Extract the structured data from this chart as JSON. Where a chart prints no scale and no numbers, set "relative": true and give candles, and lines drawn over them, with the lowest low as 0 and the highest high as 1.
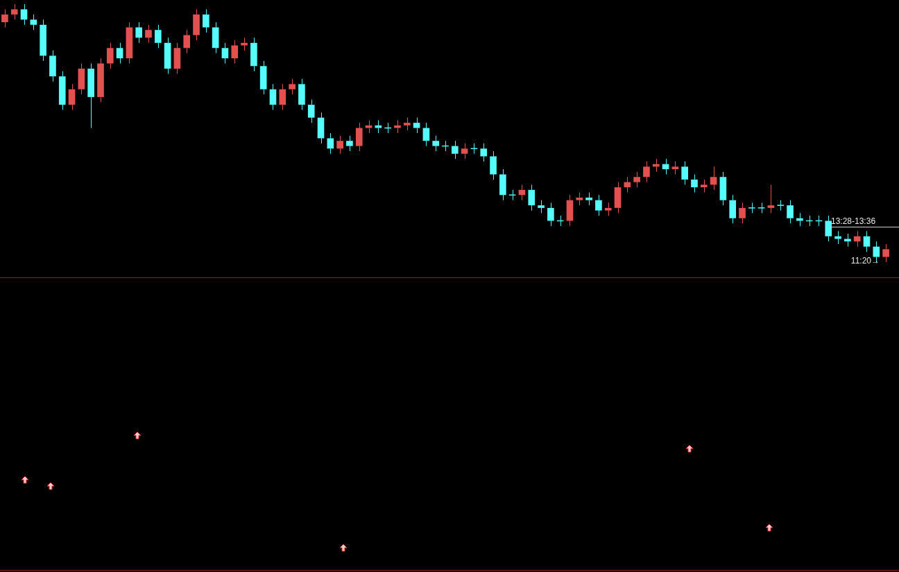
{
  "chart_data": {
    "type": "candlestick",
    "relative": true,
    "categories": [
      null,
      null,
      null,
      null,
      null,
      null,
      null,
      null,
      null,
      null,
      null,
      null,
      null,
      null,
      null,
      null,
      null,
      null,
      null,
      null,
      null,
      null,
      null,
      null,
      null,
      null,
      null,
      null,
      null,
      null,
      null,
      null,
      null,
      null,
      null,
      null,
      null,
      null,
      null,
      null,
      null,
      null,
      null,
      null,
      null,
      null,
      null,
      null,
      null,
      null,
      null,
      null,
      null,
      null,
      null,
      null,
      null,
      null,
      null,
      null,
      null,
      null,
      null,
      null,
      null,
      null,
      null,
      null,
      null,
      null,
      null,
      null,
      null,
      null,
      null,
      null,
      null,
      null,
      null,
      null,
      null,
      null,
      null,
      null,
      null,
      null,
      null,
      null,
      null,
      null,
      null,
      null,
      null
    ],
    "ohlc": [
      [
        0.93,
        0.98,
        0.91,
        0.96
      ],
      [
        0.96,
        1.0,
        0.94,
        0.98
      ],
      [
        0.98,
        1.0,
        0.92,
        0.94
      ],
      [
        0.94,
        0.96,
        0.9,
        0.92
      ],
      [
        0.92,
        0.94,
        0.78,
        0.8
      ],
      [
        0.8,
        0.82,
        0.7,
        0.72
      ],
      [
        0.72,
        0.74,
        0.59,
        0.61
      ],
      [
        0.61,
        0.69,
        0.59,
        0.67
      ],
      [
        0.67,
        0.77,
        0.65,
        0.75
      ],
      [
        0.75,
        0.77,
        0.52,
        0.64
      ],
      [
        0.64,
        0.79,
        0.62,
        0.77
      ],
      [
        0.77,
        0.85,
        0.75,
        0.83
      ],
      [
        0.83,
        0.85,
        0.77,
        0.79
      ],
      [
        0.79,
        0.93,
        0.77,
        0.91
      ],
      [
        0.91,
        0.93,
        0.85,
        0.87
      ],
      [
        0.87,
        0.92,
        0.85,
        0.9
      ],
      [
        0.9,
        0.92,
        0.83,
        0.85
      ],
      [
        0.85,
        0.87,
        0.73,
        0.75
      ],
      [
        0.75,
        0.85,
        0.73,
        0.83
      ],
      [
        0.83,
        0.9,
        0.81,
        0.88
      ],
      [
        0.88,
        0.98,
        0.86,
        0.96
      ],
      [
        0.96,
        0.98,
        0.89,
        0.91
      ],
      [
        0.91,
        0.93,
        0.81,
        0.83
      ],
      [
        0.83,
        0.85,
        0.77,
        0.79
      ],
      [
        0.79,
        0.86,
        0.77,
        0.84
      ],
      [
        0.84,
        0.87,
        0.82,
        0.85
      ],
      [
        0.85,
        0.87,
        0.74,
        0.76
      ],
      [
        0.76,
        0.78,
        0.65,
        0.67
      ],
      [
        0.67,
        0.69,
        0.59,
        0.61
      ],
      [
        0.61,
        0.69,
        0.59,
        0.67
      ],
      [
        0.67,
        0.71,
        0.65,
        0.69
      ],
      [
        0.69,
        0.71,
        0.59,
        0.61
      ],
      [
        0.61,
        0.63,
        0.54,
        0.56
      ],
      [
        0.56,
        0.58,
        0.46,
        0.48
      ],
      [
        0.48,
        0.5,
        0.42,
        0.44
      ],
      [
        0.44,
        0.49,
        0.42,
        0.47
      ],
      [
        0.47,
        0.49,
        0.43,
        0.45
      ],
      [
        0.45,
        0.54,
        0.43,
        0.52
      ],
      [
        0.52,
        0.55,
        0.5,
        0.53
      ],
      [
        0.53,
        0.55,
        0.5,
        0.52
      ],
      [
        0.52,
        0.54,
        0.5,
        0.52
      ],
      [
        0.52,
        0.55,
        0.5,
        0.53
      ],
      [
        0.53,
        0.56,
        0.51,
        0.54
      ],
      [
        0.54,
        0.56,
        0.5,
        0.52
      ],
      [
        0.52,
        0.54,
        0.45,
        0.47
      ],
      [
        0.47,
        0.49,
        0.43,
        0.45
      ],
      [
        0.45,
        0.47,
        0.43,
        0.45
      ],
      [
        0.45,
        0.47,
        0.4,
        0.42
      ],
      [
        0.42,
        0.46,
        0.4,
        0.44
      ],
      [
        0.44,
        0.46,
        0.42,
        0.44
      ],
      [
        0.44,
        0.46,
        0.39,
        0.41
      ],
      [
        0.41,
        0.43,
        0.32,
        0.34
      ],
      [
        0.34,
        0.36,
        0.24,
        0.26
      ],
      [
        0.26,
        0.28,
        0.24,
        0.26
      ],
      [
        0.26,
        0.3,
        0.24,
        0.28
      ],
      [
        0.28,
        0.3,
        0.2,
        0.22
      ],
      [
        0.22,
        0.24,
        0.19,
        0.21
      ],
      [
        0.21,
        0.23,
        0.14,
        0.16
      ],
      [
        0.16,
        0.18,
        0.14,
        0.16
      ],
      [
        0.16,
        0.26,
        0.14,
        0.24
      ],
      [
        0.24,
        0.27,
        0.22,
        0.25
      ],
      [
        0.25,
        0.27,
        0.22,
        0.24
      ],
      [
        0.24,
        0.26,
        0.18,
        0.2
      ],
      [
        0.2,
        0.23,
        0.18,
        0.21
      ],
      [
        0.21,
        0.31,
        0.19,
        0.29
      ],
      [
        0.29,
        0.33,
        0.27,
        0.31
      ],
      [
        0.31,
        0.35,
        0.29,
        0.33
      ],
      [
        0.33,
        0.39,
        0.31,
        0.37
      ],
      [
        0.37,
        0.4,
        0.35,
        0.38
      ],
      [
        0.38,
        0.4,
        0.34,
        0.36
      ],
      [
        0.36,
        0.39,
        0.34,
        0.37
      ],
      [
        0.37,
        0.39,
        0.3,
        0.32
      ],
      [
        0.32,
        0.34,
        0.27,
        0.29
      ],
      [
        0.29,
        0.32,
        0.27,
        0.3
      ],
      [
        0.3,
        0.37,
        0.28,
        0.33
      ],
      [
        0.33,
        0.35,
        0.22,
        0.24
      ],
      [
        0.24,
        0.26,
        0.15,
        0.17
      ],
      [
        0.17,
        0.23,
        0.15,
        0.21
      ],
      [
        0.21,
        0.23,
        0.19,
        0.21
      ],
      [
        0.21,
        0.23,
        0.19,
        0.21
      ],
      [
        0.21,
        0.3,
        0.19,
        0.22
      ],
      [
        0.22,
        0.24,
        0.2,
        0.22
      ],
      [
        0.22,
        0.24,
        0.15,
        0.17
      ],
      [
        0.17,
        0.19,
        0.14,
        0.16
      ],
      [
        0.16,
        0.18,
        0.14,
        0.16
      ],
      [
        0.16,
        0.18,
        0.14,
        0.16
      ],
      [
        0.16,
        0.18,
        0.08,
        0.1
      ],
      [
        0.1,
        0.12,
        0.07,
        0.09
      ],
      [
        0.09,
        0.11,
        0.06,
        0.08
      ],
      [
        0.08,
        0.12,
        0.06,
        0.1
      ],
      [
        0.1,
        0.12,
        0.04,
        0.06
      ],
      [
        0.06,
        0.08,
        0.0,
        0.02
      ],
      [
        0.02,
        0.07,
        0.0,
        0.05
      ]
    ],
    "colors": [
      "#e25050",
      "#e25050",
      "#54fcfc",
      "#54fcfc",
      "#54fcfc",
      "#54fcfc",
      "#54fcfc",
      "#e25050",
      "#e25050",
      "#54fcfc",
      "#e25050",
      "#e25050",
      "#54fcfc",
      "#e25050",
      "#54fcfc",
      "#e25050",
      "#54fcfc",
      "#54fcfc",
      "#e25050",
      "#e25050",
      "#e25050",
      "#54fcfc",
      "#54fcfc",
      "#54fcfc",
      "#e25050",
      "#e25050",
      "#54fcfc",
      "#54fcfc",
      "#54fcfc",
      "#e25050",
      "#e25050",
      "#54fcfc",
      "#54fcfc",
      "#54fcfc",
      "#54fcfc",
      "#e25050",
      "#54fcfc",
      "#e25050",
      "#e25050",
      "#54fcfc",
      "#54fcfc",
      "#e25050",
      "#e25050",
      "#54fcfc",
      "#54fcfc",
      "#54fcfc",
      "#54fcfc",
      "#54fcfc",
      "#e25050",
      "#54fcfc",
      "#54fcfc",
      "#54fcfc",
      "#54fcfc",
      "#54fcfc",
      "#e25050",
      "#54fcfc",
      "#54fcfc",
      "#54fcfc",
      "#54fcfc",
      "#e25050",
      "#e25050",
      "#54fcfc",
      "#54fcfc",
      "#e25050",
      "#e25050",
      "#e25050",
      "#e25050",
      "#e25050",
      "#e25050",
      "#54fcfc",
      "#e25050",
      "#54fcfc",
      "#54fcfc",
      "#e25050",
      "#e25050",
      "#54fcfc",
      "#54fcfc",
      "#e25050",
      "#54fcfc",
      "#54fcfc",
      "#e25050",
      "#54fcfc",
      "#54fcfc",
      "#54fcfc",
      "#54fcfc",
      "#54fcfc",
      "#54fcfc",
      "#54fcfc",
      "#54fcfc",
      "#e25050",
      "#54fcfc",
      "#54fcfc",
      "#e25050"
    ],
    "annotations": [
      "13:28-13:36",
      "11:20→"
    ]
  }
}
